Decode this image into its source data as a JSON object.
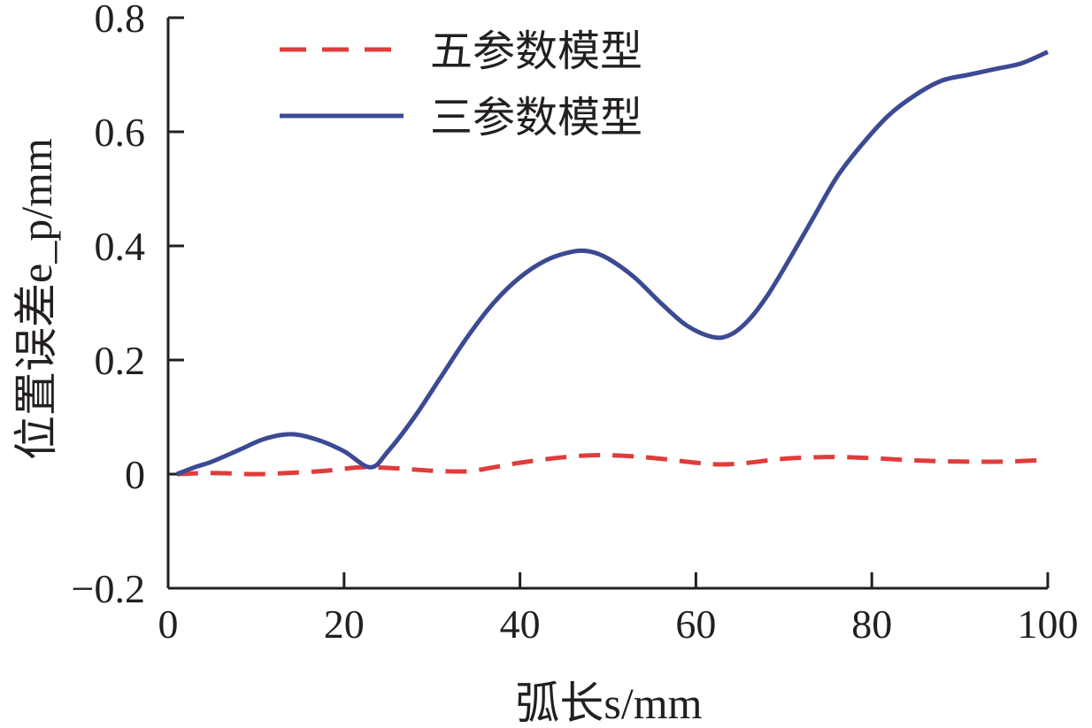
{
  "chart_data": {
    "type": "line",
    "xlabel": "弧长s/mm",
    "ylabel": "位置误差e_p/mm",
    "xlim": [
      0,
      100
    ],
    "ylim": [
      -0.2,
      0.8
    ],
    "x_ticks": [
      "0",
      "20",
      "40",
      "60",
      "80",
      "100"
    ],
    "y_ticks": [
      "−0.2",
      "0",
      "0.2",
      "0.4",
      "0.6",
      "0.8"
    ],
    "legend": "top-left",
    "grid": false,
    "series": [
      {
        "name": "五参数模型",
        "color": "#e03c3c",
        "style": "dashed",
        "x": [
          1,
          5,
          10,
          15,
          18,
          22,
          26,
          30,
          34,
          37,
          40,
          44,
          48,
          52,
          56,
          60,
          63,
          66,
          70,
          75,
          80,
          85,
          90,
          95,
          100
        ],
        "y": [
          0.0,
          0.002,
          0.0,
          0.003,
          0.006,
          0.012,
          0.01,
          0.006,
          0.005,
          0.012,
          0.02,
          0.028,
          0.033,
          0.032,
          0.027,
          0.02,
          0.017,
          0.02,
          0.027,
          0.03,
          0.028,
          0.024,
          0.022,
          0.022,
          0.025
        ]
      },
      {
        "name": "三参数模型",
        "color": "#3c4a93",
        "style": "solid",
        "x": [
          1,
          3,
          5,
          8,
          11,
          14,
          17,
          20,
          23,
          25,
          28,
          31,
          34,
          37,
          40,
          43,
          46,
          48,
          50,
          53,
          56,
          59,
          62,
          64,
          66,
          68,
          70,
          73,
          76,
          79,
          82,
          85,
          88,
          91,
          94,
          97,
          100
        ],
        "y": [
          0.0,
          0.012,
          0.022,
          0.042,
          0.062,
          0.07,
          0.06,
          0.04,
          0.012,
          0.04,
          0.1,
          0.17,
          0.24,
          0.3,
          0.345,
          0.375,
          0.39,
          0.39,
          0.378,
          0.345,
          0.3,
          0.26,
          0.24,
          0.245,
          0.27,
          0.31,
          0.36,
          0.44,
          0.52,
          0.58,
          0.63,
          0.665,
          0.69,
          0.7,
          0.71,
          0.72,
          0.74
        ]
      }
    ]
  }
}
